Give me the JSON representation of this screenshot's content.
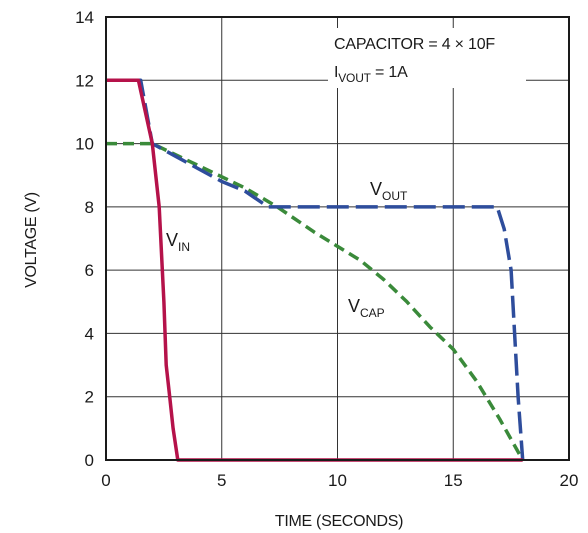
{
  "chart_data": {
    "type": "line",
    "xlabel": "TIME (SECONDS)",
    "ylabel": "VOLTAGE (V)",
    "xlim": [
      0,
      20
    ],
    "ylim": [
      0,
      14
    ],
    "xticks": [
      0,
      5,
      10,
      15,
      20
    ],
    "yticks": [
      0,
      2,
      4,
      6,
      8,
      10,
      12,
      14
    ],
    "grid": true,
    "annotations": [
      {
        "text": "CAPACITOR = 4 × 10F"
      },
      {
        "main": "I",
        "sub": "VOUT",
        "rest": " = 1A"
      }
    ],
    "series": [
      {
        "name": "V_IN",
        "label_main": "V",
        "label_sub": "IN",
        "color": "#b5124a",
        "style": "solid",
        "x": [
          0,
          1.4,
          2.0,
          2.3,
          2.5,
          2.6,
          2.75,
          2.9,
          3.1,
          18
        ],
        "y": [
          12,
          12,
          10,
          8,
          5,
          3,
          2,
          1,
          0,
          0
        ]
      },
      {
        "name": "V_OUT",
        "label_main": "V",
        "label_sub": "OUT",
        "color": "#2e4d9c",
        "style": "dashed",
        "x": [
          0,
          1.5,
          2.0,
          3.0,
          4.0,
          5.0,
          6.0,
          7.0,
          7.4,
          10,
          15,
          16.9,
          17.2,
          17.5,
          17.8,
          18.0
        ],
        "y": [
          12,
          12,
          10,
          9.6,
          9.2,
          8.8,
          8.5,
          8.0,
          8.0,
          8.0,
          8.0,
          8.0,
          7.3,
          6.0,
          2.0,
          0
        ]
      },
      {
        "name": "V_CAP",
        "label_main": "V",
        "label_sub": "CAP",
        "color": "#3a8a3a",
        "style": "dashed",
        "x": [
          0,
          2.0,
          4.0,
          6.0,
          7.4,
          9.0,
          11.0,
          12.0,
          13.0,
          14.0,
          15.0,
          16.0,
          17.0,
          18.0
        ],
        "y": [
          10,
          10,
          9.3,
          8.6,
          8.0,
          7.2,
          6.3,
          5.7,
          5.0,
          4.2,
          3.5,
          2.5,
          1.3,
          0
        ]
      }
    ]
  }
}
